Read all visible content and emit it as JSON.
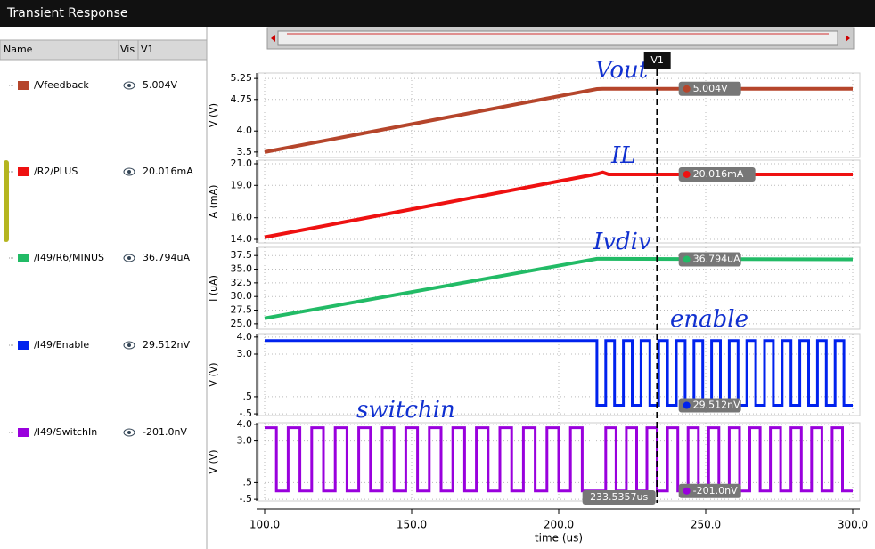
{
  "window": {
    "title": "Transient Response"
  },
  "list": {
    "headers": [
      "Name",
      "Vis",
      "V1"
    ]
  },
  "cursor": {
    "label": "V1",
    "x": 233.5357,
    "x_label": "233.5357us"
  },
  "chart_data": [
    {
      "type": "line",
      "ylabel": "V (V)",
      "annotation": "Vout",
      "marker_label": "5.004V",
      "x": [
        100,
        213,
        215,
        300
      ],
      "series": [
        {
          "name": "/Vfeedback",
          "color": "#b5452b",
          "values": [
            3.5,
            5.0,
            5.004,
            5.004
          ]
        }
      ],
      "xlim": [
        100,
        300
      ],
      "ylim": [
        3.37,
        5.38
      ],
      "yticks": [
        {
          "value": 5.25,
          "label": "5.25"
        },
        {
          "value": 4.75,
          "label": "4.75"
        },
        {
          "value": 4,
          "label": "4.0"
        },
        {
          "value": 3.5,
          "label": "3.5"
        }
      ]
    },
    {
      "type": "line",
      "ylabel": "A (mA)",
      "annotation": "IL",
      "marker_label": "20.016mA",
      "x": [
        100,
        213,
        215,
        217,
        300
      ],
      "series": [
        {
          "name": "/R2/PLUS",
          "color": "#ee1111",
          "values": [
            14.2,
            20.05,
            20.2,
            20.016,
            20.016
          ]
        }
      ],
      "xlim": [
        100,
        300
      ],
      "ylim": [
        13.67,
        21.33
      ],
      "yticks": [
        {
          "value": 21,
          "label": "21.0"
        },
        {
          "value": 19,
          "label": "19.0"
        },
        {
          "value": 16,
          "label": "16.0"
        },
        {
          "value": 14,
          "label": "14.0"
        }
      ]
    },
    {
      "type": "line",
      "ylabel": "I (uA)",
      "annotation": "Ivdiv",
      "marker_label": "36.794uA",
      "x": [
        100,
        213,
        215,
        300
      ],
      "series": [
        {
          "name": "/I49/R6/MINUS",
          "color": "#22bb66",
          "values": [
            26.0,
            36.9,
            36.9,
            36.794
          ]
        }
      ],
      "xlim": [
        100,
        300
      ],
      "ylim": [
        24.0,
        39.0
      ],
      "yticks": [
        37.5,
        {
          "value": 35,
          "label": "35.0"
        },
        32.5,
        {
          "value": 30,
          "label": "30.0"
        },
        27.5,
        {
          "value": 25,
          "label": "25.0"
        }
      ]
    },
    {
      "type": "line",
      "ylabel": "V (V)",
      "annotation": "enable",
      "marker_label": "29.512nV",
      "x": [
        100,
        213,
        213,
        216,
        216,
        219,
        219,
        222,
        222,
        225,
        225,
        228,
        228,
        231,
        231,
        234,
        234,
        237,
        237,
        240,
        240,
        243,
        243,
        246,
        246,
        249,
        249,
        252,
        252,
        255,
        255,
        258,
        258,
        261,
        261,
        264,
        264,
        267,
        267,
        270,
        270,
        273,
        273,
        276,
        276,
        279,
        279,
        282,
        282,
        285,
        285,
        288,
        288,
        291,
        291,
        294,
        294,
        297,
        297,
        300
      ],
      "series": [
        {
          "name": "/I49/Enable",
          "color": "#0022ee",
          "values": [
            3.8,
            3.8,
            0,
            0,
            3.8,
            3.8,
            0,
            0,
            3.8,
            3.8,
            0,
            0,
            3.8,
            3.8,
            0,
            0,
            3.8,
            3.8,
            0,
            0,
            3.8,
            3.8,
            0,
            0,
            3.8,
            3.8,
            0,
            0,
            3.8,
            3.8,
            0,
            0,
            3.8,
            3.8,
            0,
            0,
            3.8,
            3.8,
            0,
            0,
            3.8,
            3.8,
            0,
            0,
            3.8,
            3.8,
            0,
            0,
            3.8,
            3.8,
            0,
            0,
            3.8,
            3.8,
            0,
            0,
            3.8,
            3.8,
            0,
            0
          ]
        }
      ],
      "xlim": [
        100,
        300
      ],
      "ylim": [
        -0.6,
        4.2
      ],
      "yticks": [
        {
          "value": 4,
          "label": "4.0"
        },
        {
          "value": 3,
          "label": "3.0"
        },
        {
          "value": 0.5,
          "label": ".5"
        },
        {
          "value": -0.5,
          "label": "-.5"
        }
      ]
    },
    {
      "type": "line",
      "ylabel": "V (V)",
      "annotation": "switchin",
      "marker_label": "-201.0nV",
      "x": [
        100,
        104,
        104,
        108,
        108,
        112,
        112,
        116,
        116,
        120,
        120,
        124,
        124,
        128,
        128,
        132,
        132,
        136,
        136,
        140,
        140,
        144,
        144,
        148,
        148,
        152,
        152,
        156,
        156,
        160,
        160,
        164,
        164,
        168,
        168,
        172,
        172,
        176,
        176,
        180,
        180,
        184,
        184,
        188,
        188,
        192,
        192,
        196,
        196,
        200,
        200,
        204,
        204,
        208,
        208,
        212,
        212,
        216,
        216,
        219.5,
        219.5,
        223,
        223,
        226.5,
        226.5,
        230,
        230,
        233.5,
        233.5,
        237,
        237,
        240.5,
        240.5,
        244,
        244,
        247.5,
        247.5,
        251,
        251,
        254.5,
        254.5,
        258,
        258,
        261.5,
        261.5,
        265,
        265,
        268.5,
        268.5,
        272,
        272,
        275.5,
        275.5,
        279,
        279,
        282.5,
        282.5,
        286,
        286,
        289.5,
        289.5,
        293,
        293,
        296.5,
        296.5,
        300
      ],
      "series": [
        {
          "name": "/I49/SwitchIn",
          "color": "#9900dd",
          "values": [
            3.8,
            3.8,
            0,
            0,
            3.8,
            3.8,
            0,
            0,
            3.8,
            3.8,
            0,
            0,
            3.8,
            3.8,
            0,
            0,
            3.8,
            3.8,
            0,
            0,
            3.8,
            3.8,
            0,
            0,
            3.8,
            3.8,
            0,
            0,
            3.8,
            3.8,
            0,
            0,
            3.8,
            3.8,
            0,
            0,
            3.8,
            3.8,
            0,
            0,
            3.8,
            3.8,
            0,
            0,
            3.8,
            3.8,
            0,
            0,
            3.8,
            3.8,
            0,
            0,
            3.8,
            3.8,
            0,
            0,
            0,
            0,
            3.8,
            3.8,
            0,
            0,
            3.8,
            3.8,
            0,
            0,
            3.8,
            3.8,
            0,
            0,
            3.8,
            3.8,
            0,
            0,
            3.8,
            3.8,
            0,
            0,
            3.8,
            3.8,
            0,
            0,
            3.8,
            3.8,
            0,
            0,
            3.8,
            3.8,
            0,
            0,
            3.8,
            3.8,
            0,
            0,
            3.8,
            3.8,
            0,
            0,
            3.8,
            3.8,
            0,
            0,
            3.8,
            3.8,
            0,
            0
          ]
        }
      ],
      "xlim": [
        100,
        300
      ],
      "ylim": [
        -0.6,
        4.1
      ],
      "yticks": [
        {
          "value": 4,
          "label": "4.0"
        },
        {
          "value": 3,
          "label": "3.0"
        },
        {
          "value": 0.5,
          "label": ".5"
        },
        {
          "value": -0.5,
          "label": "-.5"
        }
      ],
      "xlabel": "time (us)",
      "xticks": [
        {
          "value": 100,
          "label": "100.0"
        },
        {
          "value": 150,
          "label": "150.0"
        },
        {
          "value": 200,
          "label": "200.0"
        },
        {
          "value": 250,
          "label": "250.0"
        },
        {
          "value": 300,
          "label": "300.0"
        }
      ]
    }
  ]
}
